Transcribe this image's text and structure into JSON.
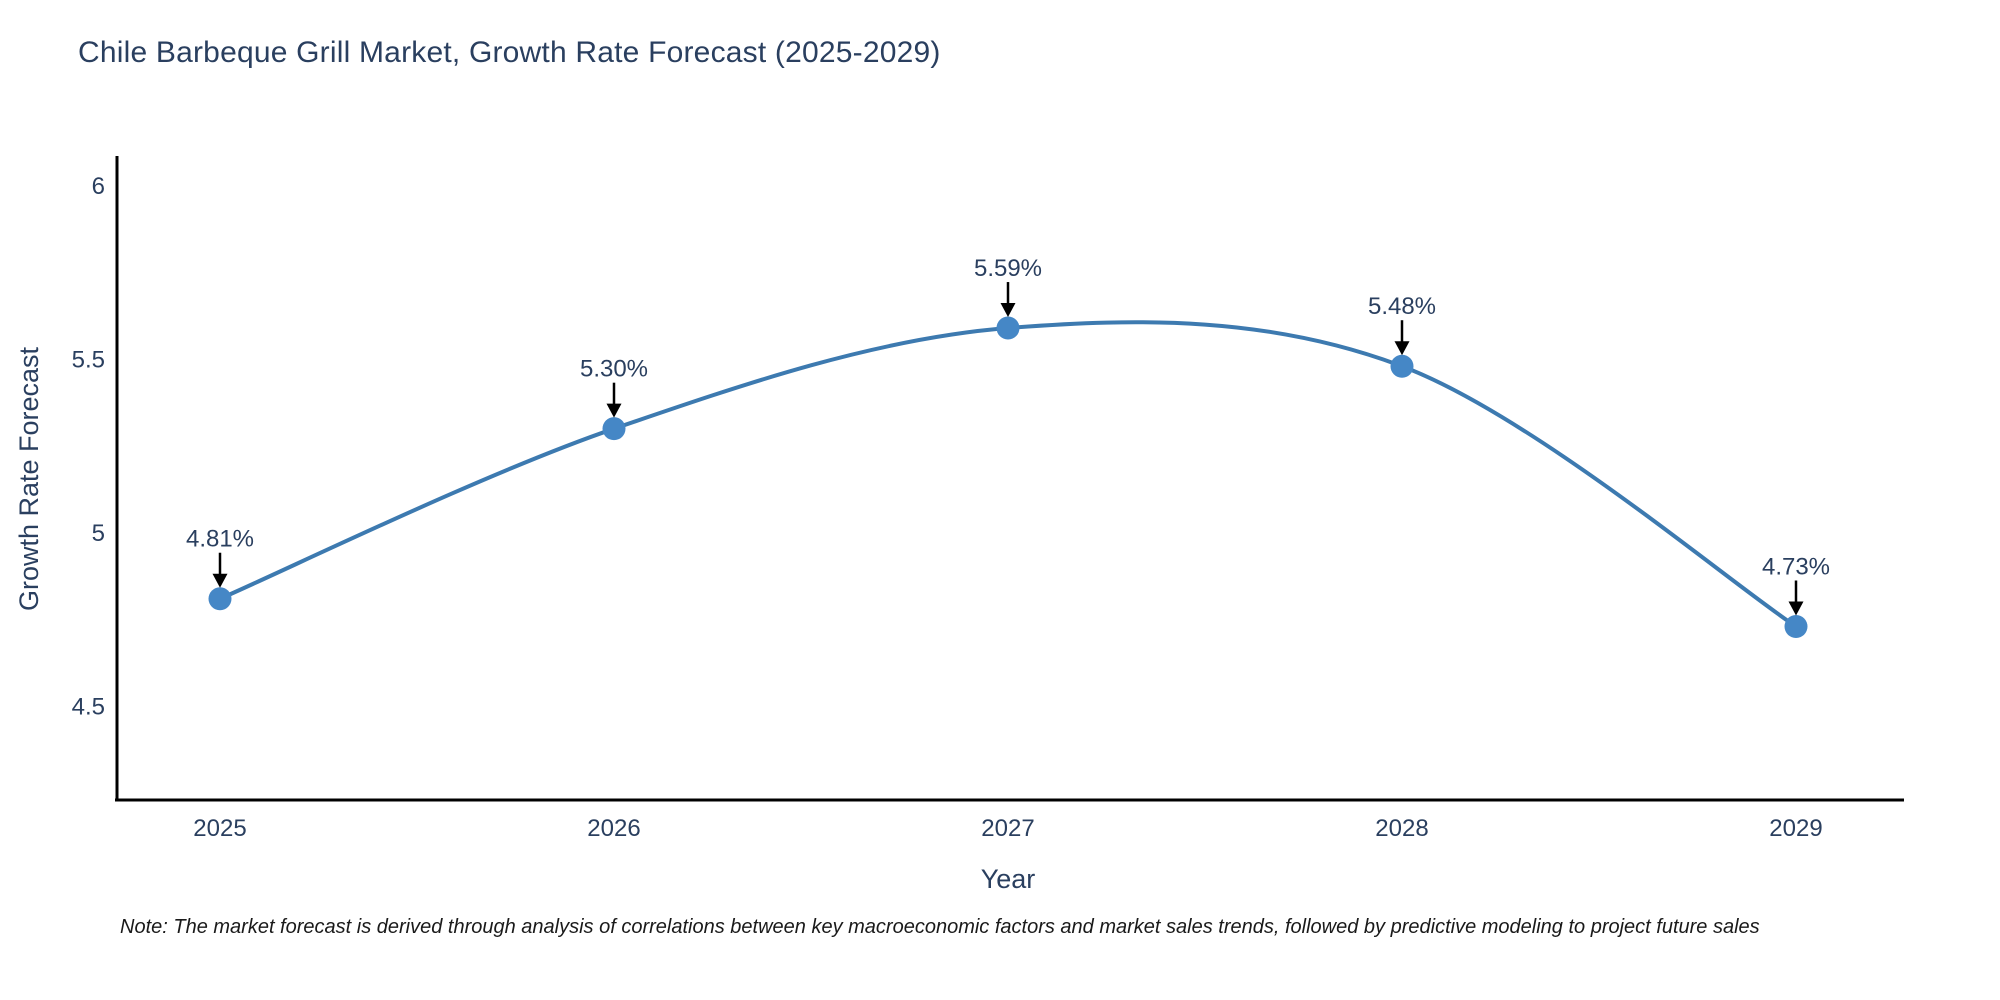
{
  "chart_data": {
    "type": "line",
    "title": "Chile Barbeque Grill Market, Growth Rate Forecast (2025-2029)",
    "x": [
      2025,
      2026,
      2027,
      2028,
      2029
    ],
    "y": [
      4.81,
      5.3,
      5.59,
      5.48,
      4.73
    ],
    "point_labels": [
      "4.81%",
      "5.30%",
      "5.59%",
      "5.48%",
      "4.73%"
    ],
    "series_name": "Growth Rate Forecast",
    "xlabel": "Year",
    "ylabel": "Growth Rate Forecast",
    "x_ticks": [
      "2025",
      "2026",
      "2027",
      "2028",
      "2029"
    ],
    "y_ticks": [
      "4.5",
      "5",
      "5.5",
      "6"
    ],
    "y_tick_values": [
      4.5,
      5,
      5.5,
      6
    ],
    "ylim": [
      4.23,
      6.08
    ],
    "line_shape": "spline",
    "grid": false,
    "legend_visible": false,
    "annotations_arrow": "down-to-point",
    "colors": {
      "line": "#3d7ab0",
      "marker": "#4587c6",
      "axis_line": "#000000",
      "arrow": "#000000",
      "title_text": "#2a3f5f",
      "tick_text": "#2a3f5f",
      "annotation_text": "#2a3f5f"
    }
  },
  "footer": {
    "note": "Note: The market forecast is derived through analysis of correlations between key macroeconomic factors and market sales trends, followed by predictive modeling to project future sales"
  }
}
